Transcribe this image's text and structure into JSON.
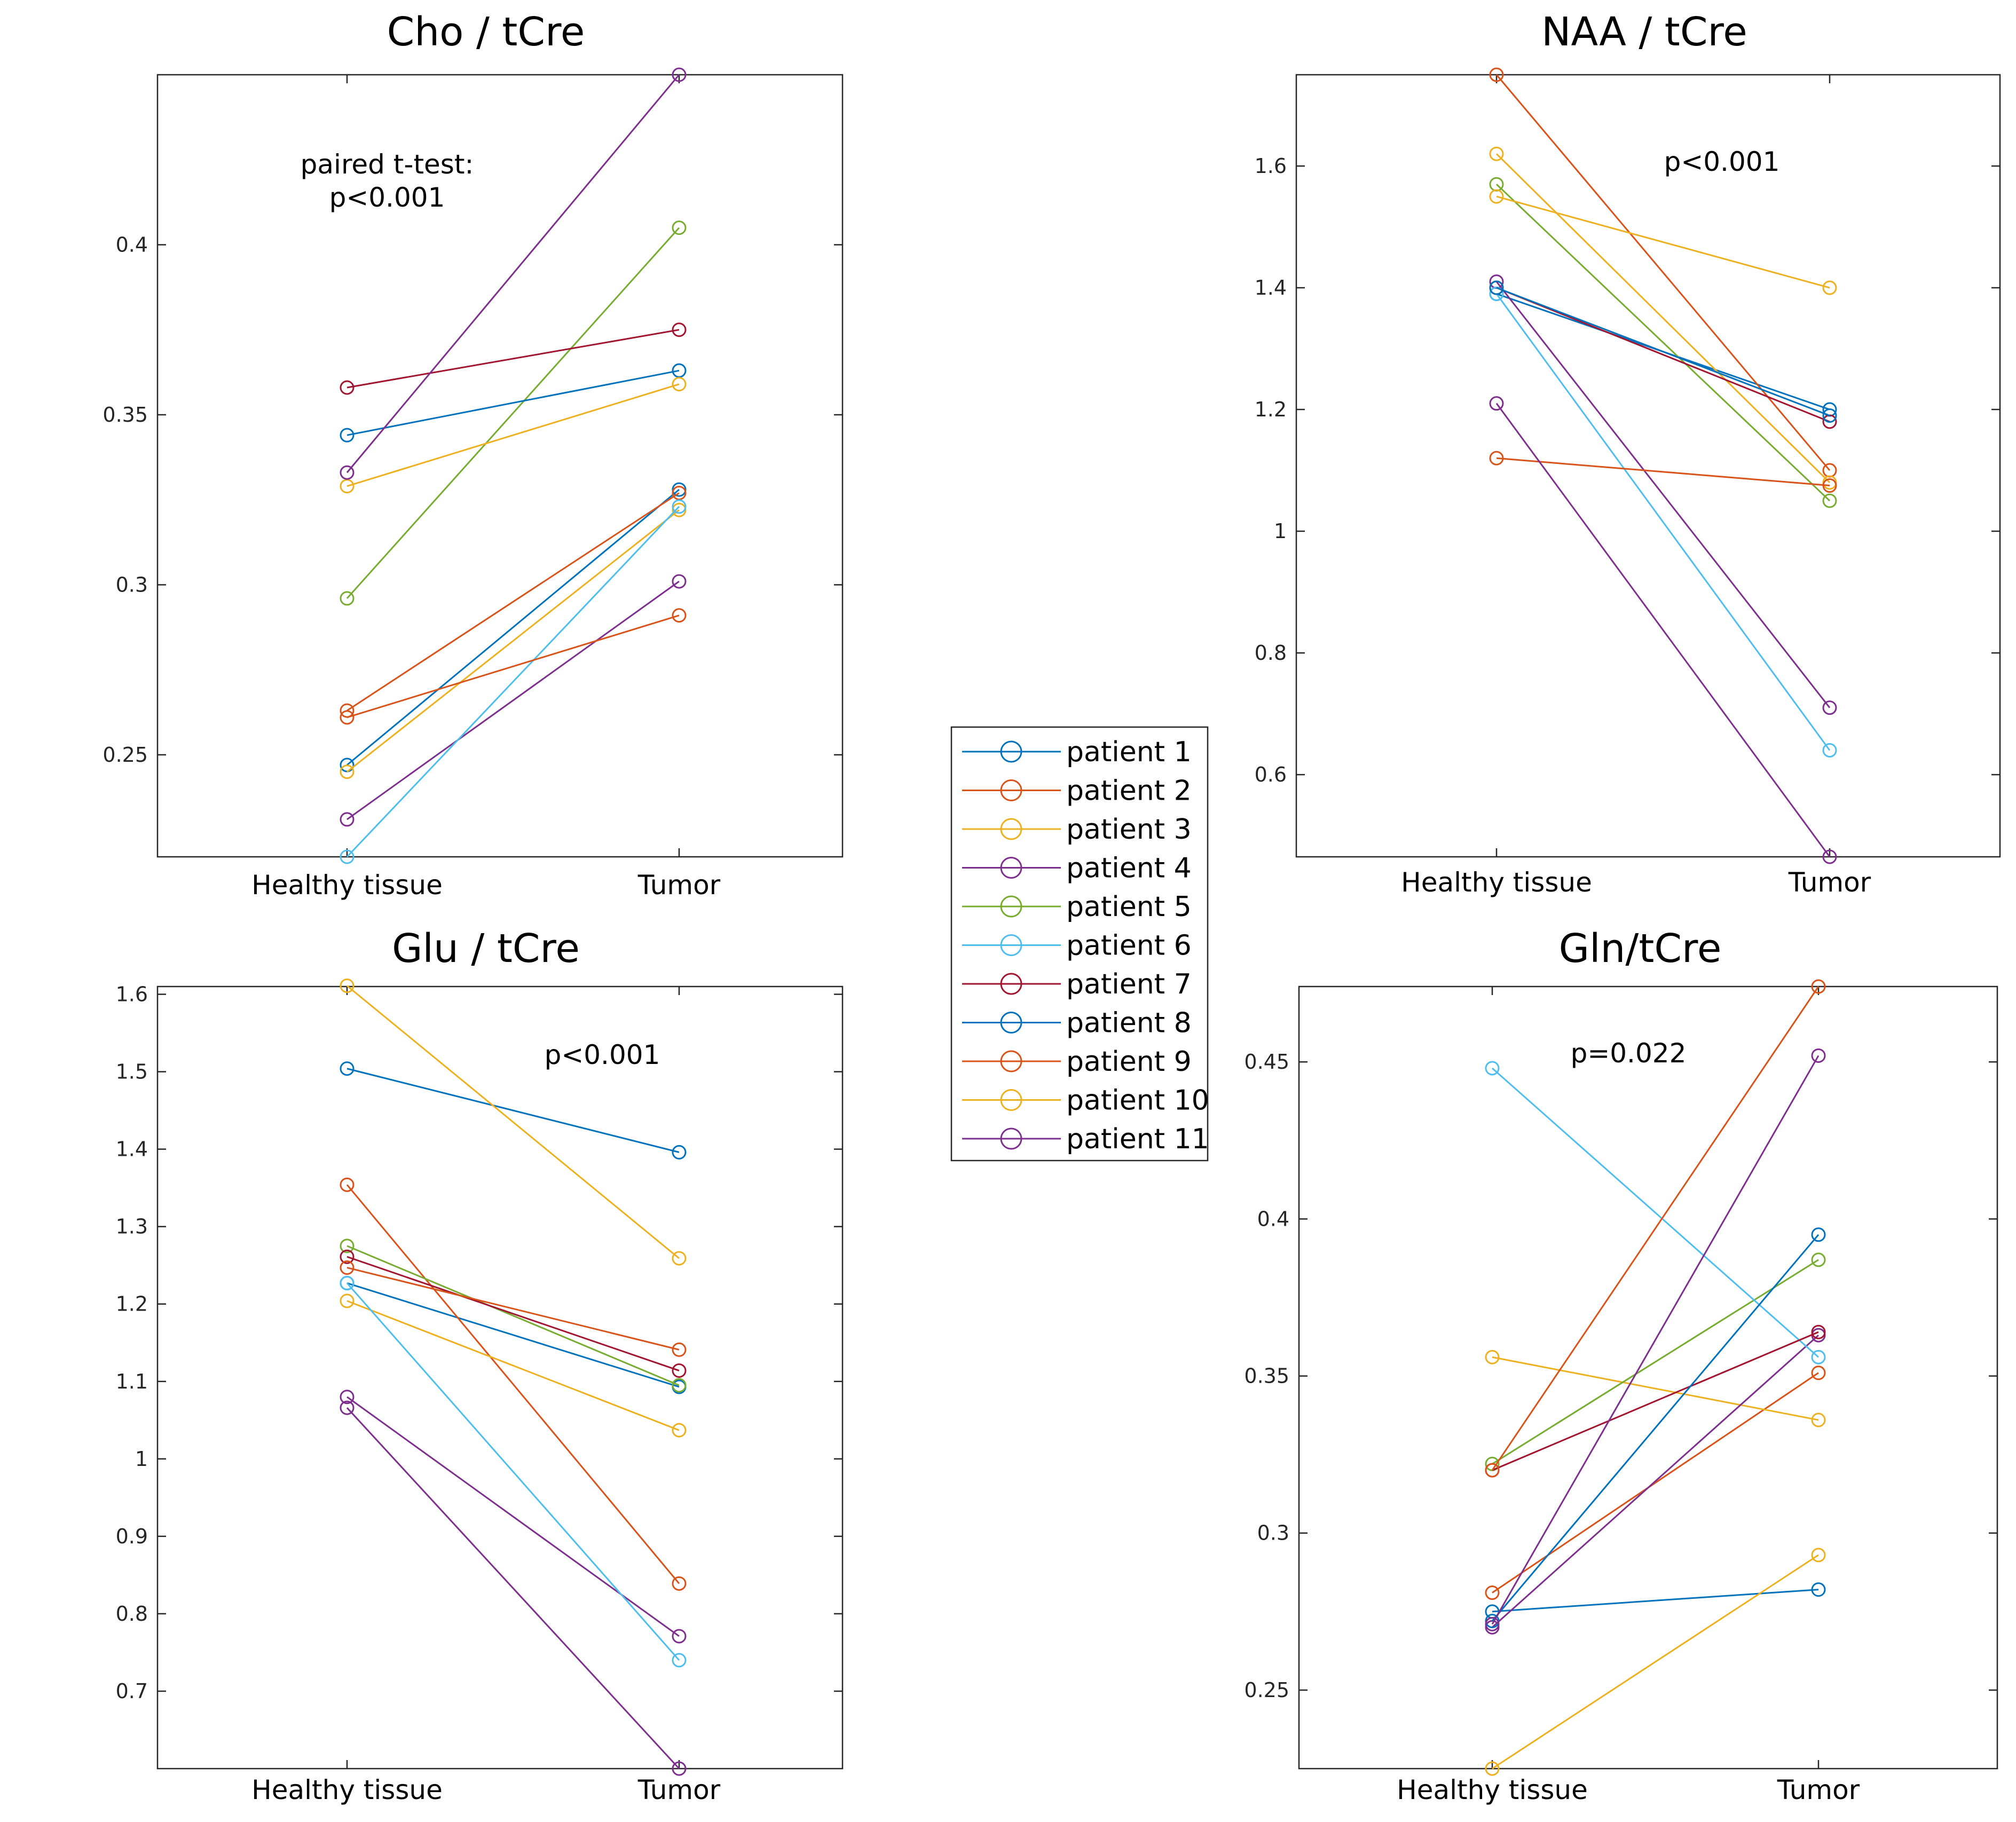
{
  "series_colors": [
    "#0072BD",
    "#D95319",
    "#EDB120",
    "#7E2F8E",
    "#77AC30",
    "#4DBEEE",
    "#A2142F",
    "#0072BD",
    "#D95319",
    "#EDB120",
    "#7E2F8E"
  ],
  "legend": [
    "patient 1",
    "patient 2",
    "patient 3",
    "patient 4",
    "patient 5",
    "patient 6",
    "patient 7",
    "patient 8",
    "patient 9",
    "patient 10",
    "patient 11"
  ],
  "chart_data": [
    {
      "type": "line",
      "title": "Cho / tCre",
      "categories": [
        "Healthy tissue",
        "Tumor"
      ],
      "ylim": [
        0.22,
        0.45
      ],
      "yticks": [
        0.25,
        0.3,
        0.35,
        0.4
      ],
      "ytick_labels": [
        "0.25",
        "0.3",
        "0.35",
        "0.4"
      ],
      "annotation": [
        "paired t-test:",
        "p<0.001"
      ],
      "series": [
        {
          "name": "patient 1",
          "values": [
            0.247,
            0.328
          ]
        },
        {
          "name": "patient 2",
          "values": [
            0.263,
            0.327
          ]
        },
        {
          "name": "patient 3",
          "values": [
            0.245,
            0.322
          ]
        },
        {
          "name": "patient 4",
          "values": [
            0.231,
            0.301
          ]
        },
        {
          "name": "patient 5",
          "values": [
            0.296,
            0.405
          ]
        },
        {
          "name": "patient 6",
          "values": [
            0.22,
            0.323
          ]
        },
        {
          "name": "patient 7",
          "values": [
            0.358,
            0.375
          ]
        },
        {
          "name": "patient 8",
          "values": [
            0.344,
            0.363
          ]
        },
        {
          "name": "patient 9",
          "values": [
            0.261,
            0.291
          ]
        },
        {
          "name": "patient 10",
          "values": [
            0.329,
            0.359
          ]
        },
        {
          "name": "patient 11",
          "values": [
            0.333,
            0.45
          ]
        }
      ]
    },
    {
      "type": "line",
      "title": "NAA / tCre",
      "categories": [
        "Healthy tissue",
        "Tumor"
      ],
      "ylim": [
        0.465,
        1.75
      ],
      "yticks": [
        0.6,
        0.8,
        1.0,
        1.2,
        1.4,
        1.6
      ],
      "ytick_labels": [
        "0.6",
        "0.8",
        "1",
        "1.2",
        "1.4",
        "1.6"
      ],
      "annotation": [
        "p<0.001"
      ],
      "series": [
        {
          "name": "patient 1",
          "values": [
            1.39,
            1.2
          ]
        },
        {
          "name": "patient 2",
          "values": [
            1.75,
            1.1
          ]
        },
        {
          "name": "patient 3",
          "values": [
            1.62,
            1.08
          ]
        },
        {
          "name": "patient 4",
          "values": [
            1.41,
            0.71
          ]
        },
        {
          "name": "patient 5",
          "values": [
            1.57,
            1.05
          ]
        },
        {
          "name": "patient 6",
          "values": [
            1.39,
            0.64
          ]
        },
        {
          "name": "patient 7",
          "values": [
            1.4,
            1.18
          ]
        },
        {
          "name": "patient 8",
          "values": [
            1.4,
            1.19
          ]
        },
        {
          "name": "patient 9",
          "values": [
            1.12,
            1.075
          ]
        },
        {
          "name": "patient 10",
          "values": [
            1.55,
            1.4
          ]
        },
        {
          "name": "patient 11",
          "values": [
            1.21,
            0.465
          ]
        }
      ]
    },
    {
      "type": "line",
      "title": "Glu / tCre",
      "categories": [
        "Healthy tissue",
        "Tumor"
      ],
      "ylim": [
        0.6,
        1.61
      ],
      "yticks": [
        0.7,
        0.8,
        0.9,
        1.0,
        1.1,
        1.2,
        1.3,
        1.4,
        1.5,
        1.6
      ],
      "ytick_labels": [
        "0.7",
        "0.8",
        "0.9",
        "1",
        "1.1",
        "1.2",
        "1.3",
        "1.4",
        "1.5",
        "1.6"
      ],
      "annotation": [
        "p<0.001"
      ],
      "series": [
        {
          "name": "patient 1",
          "values": [
            1.227,
            1.093
          ]
        },
        {
          "name": "patient 2",
          "values": [
            1.354,
            0.839
          ]
        },
        {
          "name": "patient 3",
          "values": [
            1.204,
            1.037
          ]
        },
        {
          "name": "patient 4",
          "values": [
            1.08,
            0.771
          ]
        },
        {
          "name": "patient 5",
          "values": [
            1.275,
            1.095
          ]
        },
        {
          "name": "patient 6",
          "values": [
            1.227,
            0.74
          ]
        },
        {
          "name": "patient 7",
          "values": [
            1.261,
            1.114
          ]
        },
        {
          "name": "patient 8",
          "values": [
            1.504,
            1.396
          ]
        },
        {
          "name": "patient 9",
          "values": [
            1.247,
            1.141
          ]
        },
        {
          "name": "patient 10",
          "values": [
            1.611,
            1.259
          ]
        },
        {
          "name": "patient 11",
          "values": [
            1.066,
            0.6
          ]
        }
      ]
    },
    {
      "type": "line",
      "title": "Gln/tCre",
      "categories": [
        "Healthy tissue",
        "Tumor"
      ],
      "ylim": [
        0.225,
        0.474
      ],
      "yticks": [
        0.25,
        0.3,
        0.35,
        0.4,
        0.45
      ],
      "ytick_labels": [
        "0.25",
        "0.3",
        "0.35",
        "0.4",
        "0.45"
      ],
      "annotation": [
        "p=0.022"
      ],
      "series": [
        {
          "name": "patient 1",
          "values": [
            0.275,
            0.282
          ]
        },
        {
          "name": "patient 2",
          "values": [
            0.281,
            0.351
          ]
        },
        {
          "name": "patient 3",
          "values": [
            0.356,
            0.336
          ]
        },
        {
          "name": "patient 4",
          "values": [
            0.27,
            0.363
          ]
        },
        {
          "name": "patient 5",
          "values": [
            0.322,
            0.387
          ]
        },
        {
          "name": "patient 6",
          "values": [
            0.448,
            0.356
          ]
        },
        {
          "name": "patient 7",
          "values": [
            0.32,
            0.364
          ]
        },
        {
          "name": "patient 8",
          "values": [
            0.272,
            0.395
          ]
        },
        {
          "name": "patient 9",
          "values": [
            0.32,
            0.474
          ]
        },
        {
          "name": "patient 10",
          "values": [
            0.225,
            0.293
          ]
        },
        {
          "name": "patient 11",
          "values": [
            0.271,
            0.452
          ]
        }
      ]
    }
  ]
}
